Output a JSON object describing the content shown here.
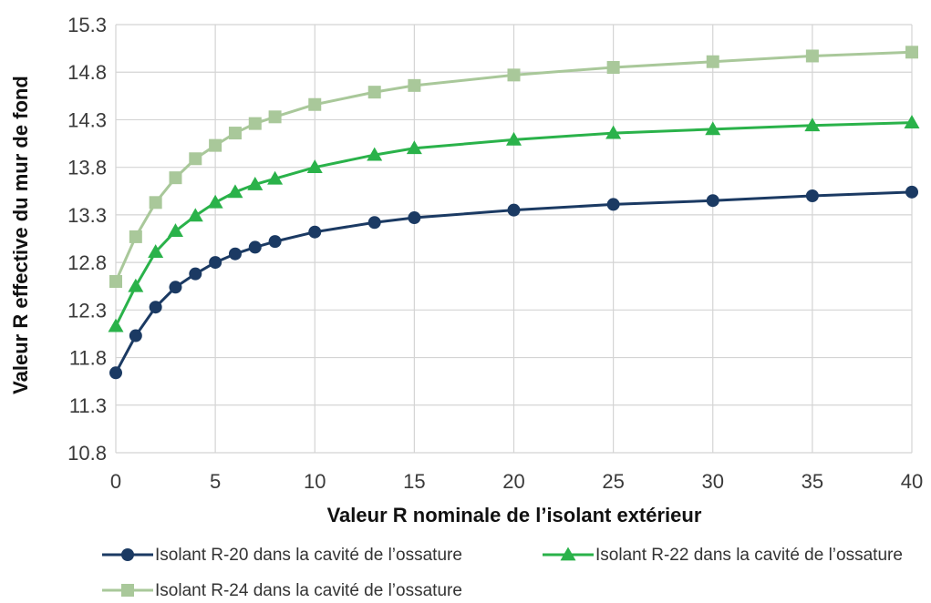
{
  "chart_data": {
    "type": "line",
    "xlabel": "Valeur R nominale de l’isolant extérieur",
    "ylabel": "Valeur R effective du mur de fond",
    "xlim": [
      0,
      40
    ],
    "ylim": [
      10.8,
      15.3
    ],
    "xticks": [
      "0",
      "5",
      "10",
      "15",
      "20",
      "25",
      "30",
      "35",
      "40"
    ],
    "yticks": [
      "10.8",
      "11.3",
      "11.8",
      "12.3",
      "12.8",
      "13.3",
      "13.8",
      "14.3",
      "14.8",
      "15.3"
    ],
    "grid": true,
    "legend_position": "bottom",
    "x": [
      0,
      1,
      2,
      3,
      4,
      5,
      6,
      7,
      8,
      10,
      13,
      15,
      20,
      25,
      30,
      35,
      40
    ],
    "series": [
      {
        "name": "Isolant R-20 dans la cavité de l’ossature",
        "color": "#1b3a63",
        "marker": "circle",
        "values": [
          11.64,
          12.03,
          12.33,
          12.54,
          12.68,
          12.8,
          12.89,
          12.96,
          13.02,
          13.12,
          13.22,
          13.27,
          13.35,
          13.41,
          13.45,
          13.5,
          13.54
        ]
      },
      {
        "name": "Isolant R-22 dans la cavité de l’ossature",
        "color": "#2ab24a",
        "marker": "triangle",
        "values": [
          12.13,
          12.55,
          12.91,
          13.13,
          13.29,
          13.43,
          13.54,
          13.62,
          13.68,
          13.8,
          13.93,
          14.0,
          14.09,
          14.16,
          14.2,
          14.24,
          14.27
        ]
      },
      {
        "name": "Isolant R-24 dans la cavité de l’ossature",
        "color": "#a9c89a",
        "marker": "square",
        "values": [
          12.6,
          13.07,
          13.43,
          13.69,
          13.89,
          14.03,
          14.16,
          14.26,
          14.33,
          14.46,
          14.59,
          14.66,
          14.77,
          14.85,
          14.91,
          14.97,
          15.01
        ]
      }
    ]
  }
}
